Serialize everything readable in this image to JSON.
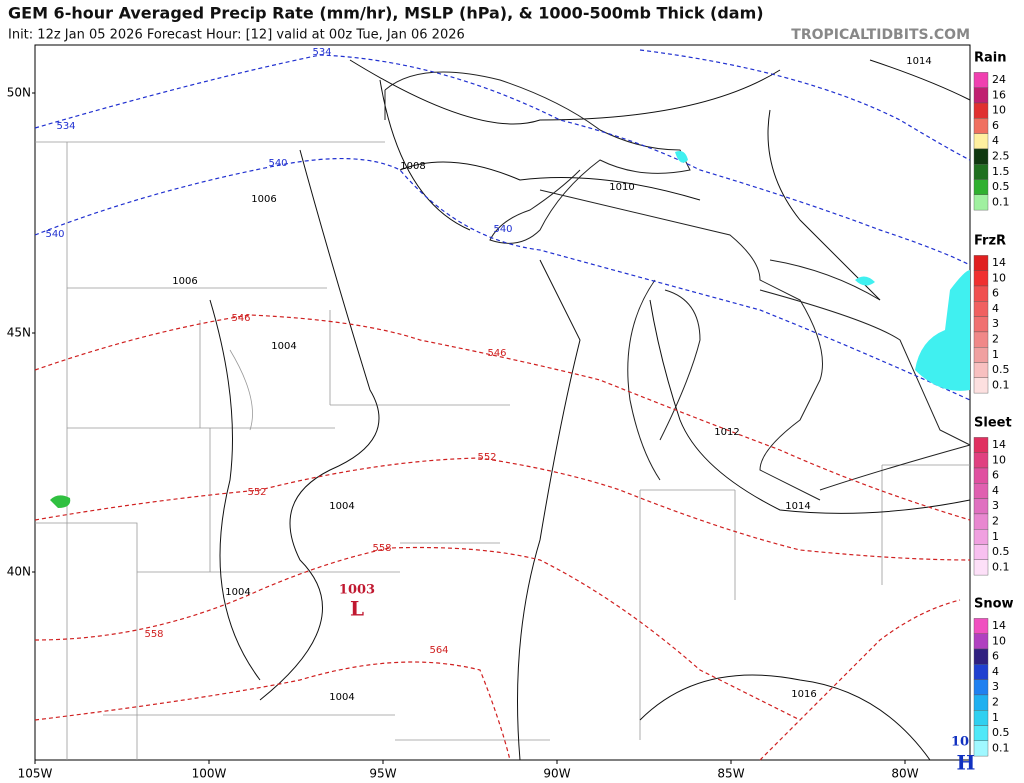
{
  "header": {
    "title": "GEM 6-hour Averaged Precip Rate (mm/hr), MSLP (hPa), & 1000-500mb Thick (dam)",
    "subtitle": "Init: 12z Jan 05 2026   Forecast Hour: [12]   valid at 00z Tue, Jan 06 2026",
    "site": "TROPICALTIDBITS.COM"
  },
  "map": {
    "lat_labels": [
      "50N",
      "45N",
      "40N"
    ],
    "lon_labels": [
      "105W",
      "100W",
      "95W",
      "90W",
      "85W",
      "80W"
    ],
    "thickness_labels": [
      "534",
      "534",
      "540",
      "540",
      "540",
      "546",
      "546",
      "552",
      "552",
      "558",
      "558",
      "564"
    ],
    "pressure_labels": [
      "1014",
      "1014",
      "1008",
      "1006",
      "1006",
      "1010",
      "1004",
      "1004",
      "1004",
      "1004",
      "1012",
      "1016"
    ],
    "centers": [
      {
        "value": "1003",
        "letter": "L"
      },
      {
        "value": "10",
        "letter": "H"
      }
    ]
  },
  "legend": [
    {
      "title": "Rain",
      "ticks": [
        "24",
        "16",
        "10",
        "6",
        "4",
        "2.5",
        "1.5",
        "0.5",
        "0.1"
      ]
    },
    {
      "title": "FrzR",
      "ticks": [
        "14",
        "10",
        "6",
        "4",
        "3",
        "2",
        "1",
        "0.5",
        "0.1"
      ]
    },
    {
      "title": "Sleet",
      "ticks": [
        "14",
        "10",
        "6",
        "4",
        "3",
        "2",
        "1",
        "0.5",
        "0.1"
      ]
    },
    {
      "title": "Snow",
      "ticks": [
        "14",
        "10",
        "6",
        "4",
        "3",
        "2",
        "1",
        "0.5",
        "0.1"
      ]
    }
  ]
}
